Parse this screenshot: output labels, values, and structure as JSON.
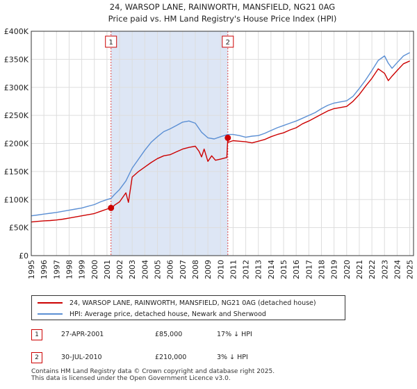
{
  "chart_data": {
    "type": "line",
    "title": "24, WARSOP LANE, RAINWORTH, MANSFIELD, NG21 0AG",
    "subtitle": "Price paid vs. HM Land Registry's House Price Index (HPI)",
    "xlabel": "",
    "ylabel": "",
    "xlim": [
      1995.0,
      2025.3
    ],
    "ylim": [
      0,
      400000
    ],
    "yticks": [
      0,
      50000,
      100000,
      150000,
      200000,
      250000,
      300000,
      350000,
      400000
    ],
    "ytick_labels": [
      "£0",
      "£50K",
      "£100K",
      "£150K",
      "£200K",
      "£250K",
      "£300K",
      "£350K",
      "£400K"
    ],
    "xticks": [
      1995,
      1996,
      1997,
      1998,
      1999,
      2000,
      2001,
      2002,
      2003,
      2004,
      2005,
      2006,
      2007,
      2008,
      2009,
      2010,
      2011,
      2012,
      2013,
      2014,
      2015,
      2016,
      2017,
      2018,
      2019,
      2020,
      2021,
      2022,
      2023,
      2024,
      2025
    ],
    "xtick_labels": [
      "1995",
      "1996",
      "1997",
      "1998",
      "1999",
      "2000",
      "2001",
      "2002",
      "2003",
      "2004",
      "2005",
      "2006",
      "2007",
      "2008",
      "2009",
      "2010",
      "2011",
      "2012",
      "2013",
      "2014",
      "2015",
      "2016",
      "2017",
      "2018",
      "2019",
      "2020",
      "2021",
      "2022",
      "2023",
      "2024",
      "2025"
    ],
    "grid": true,
    "shaded_range": [
      2001.32,
      2010.58
    ],
    "series": [
      {
        "name": "24, WARSOP LANE, RAINWORTH, MANSFIELD, NG21 0AG (detached house)",
        "color": "#cc0000",
        "x": [
          1995.0,
          1995.5,
          1996.0,
          1996.5,
          1997.0,
          1997.5,
          1998.0,
          1998.5,
          1999.0,
          1999.5,
          2000.0,
          2000.5,
          2001.0,
          2001.32,
          2001.33,
          2001.6,
          2002.0,
          2002.5,
          2002.7,
          2003.0,
          2003.5,
          2004.0,
          2004.5,
          2005.0,
          2005.5,
          2006.0,
          2006.5,
          2007.0,
          2007.5,
          2008.0,
          2008.3,
          2008.5,
          2008.7,
          2009.0,
          2009.3,
          2009.6,
          2010.0,
          2010.5,
          2010.58,
          2010.6,
          2011.0,
          2011.5,
          2012.0,
          2012.5,
          2013.0,
          2013.5,
          2014.0,
          2014.5,
          2015.0,
          2015.5,
          2016.0,
          2016.5,
          2017.0,
          2017.5,
          2018.0,
          2018.5,
          2019.0,
          2019.5,
          2020.0,
          2020.5,
          2021.0,
          2021.5,
          2022.0,
          2022.5,
          2023.0,
          2023.3,
          2023.6,
          2024.0,
          2024.5,
          2025.0
        ],
        "values": [
          60000,
          61000,
          62000,
          62500,
          63500,
          65000,
          67000,
          69000,
          71000,
          73000,
          75000,
          79000,
          83000,
          85000,
          83000,
          90000,
          96000,
          112000,
          95000,
          140000,
          150000,
          158000,
          166000,
          173000,
          178000,
          180000,
          185000,
          190000,
          193000,
          195000,
          186000,
          176000,
          190000,
          168000,
          178000,
          170000,
          172000,
          175000,
          210000,
          202000,
          205000,
          204000,
          203000,
          201000,
          204000,
          207000,
          212000,
          216000,
          219000,
          224000,
          228000,
          235000,
          240000,
          246000,
          252000,
          258000,
          262000,
          264000,
          266000,
          275000,
          287000,
          302000,
          316000,
          333000,
          325000,
          312000,
          320000,
          330000,
          342000,
          347000
        ]
      },
      {
        "name": "HPI: Average price, detached house, Newark and Sherwood",
        "color": "#5b8fd4",
        "x": [
          1995.0,
          1995.5,
          1996.0,
          1996.5,
          1997.0,
          1997.5,
          1998.0,
          1998.5,
          1999.0,
          1999.5,
          2000.0,
          2000.5,
          2001.0,
          2001.32,
          2001.6,
          2002.0,
          2002.5,
          2003.0,
          2003.5,
          2004.0,
          2004.5,
          2005.0,
          2005.5,
          2006.0,
          2006.5,
          2007.0,
          2007.5,
          2008.0,
          2008.5,
          2009.0,
          2009.5,
          2010.0,
          2010.58,
          2011.0,
          2011.5,
          2012.0,
          2012.5,
          2013.0,
          2013.5,
          2014.0,
          2014.5,
          2015.0,
          2015.5,
          2016.0,
          2016.5,
          2017.0,
          2017.5,
          2018.0,
          2018.5,
          2019.0,
          2019.5,
          2020.0,
          2020.5,
          2021.0,
          2021.5,
          2022.0,
          2022.5,
          2023.0,
          2023.3,
          2023.6,
          2024.0,
          2024.5,
          2025.0
        ],
        "values": [
          71000,
          72500,
          74000,
          75500,
          77000,
          79000,
          81000,
          83000,
          85000,
          88000,
          91000,
          96000,
          100000,
          102000,
          109000,
          118000,
          133000,
          156000,
          172000,
          188000,
          202000,
          212000,
          221000,
          226000,
          232000,
          238000,
          240000,
          236000,
          220000,
          210000,
          208000,
          212000,
          216000,
          216000,
          214000,
          211000,
          213000,
          214000,
          218000,
          223000,
          228000,
          232000,
          236000,
          240000,
          245000,
          250000,
          255000,
          262000,
          268000,
          272000,
          274000,
          276000,
          284000,
          298000,
          313000,
          330000,
          348000,
          356000,
          343000,
          334000,
          344000,
          356000,
          362000
        ]
      }
    ],
    "markers": [
      {
        "label": "1",
        "x": 2001.32,
        "y": 85000
      },
      {
        "label": "2",
        "x": 2010.58,
        "y": 210000
      }
    ]
  },
  "legend": {
    "entries": [
      {
        "label": "24, WARSOP LANE, RAINWORTH, MANSFIELD, NG21 0AG (detached house)",
        "color": "#cc0000"
      },
      {
        "label": "HPI: Average price, detached house, Newark and Sherwood",
        "color": "#5b8fd4"
      }
    ]
  },
  "sales": [
    {
      "marker": "1",
      "date": "27-APR-2001",
      "price": "£85,000",
      "hpi": "17% ↓ HPI"
    },
    {
      "marker": "2",
      "date": "30-JUL-2010",
      "price": "£210,000",
      "hpi": "3% ↓ HPI"
    }
  ],
  "footer": {
    "line1": "Contains HM Land Registry data © Crown copyright and database right 2025.",
    "line2": "This data is licensed under the Open Government Licence v3.0."
  }
}
